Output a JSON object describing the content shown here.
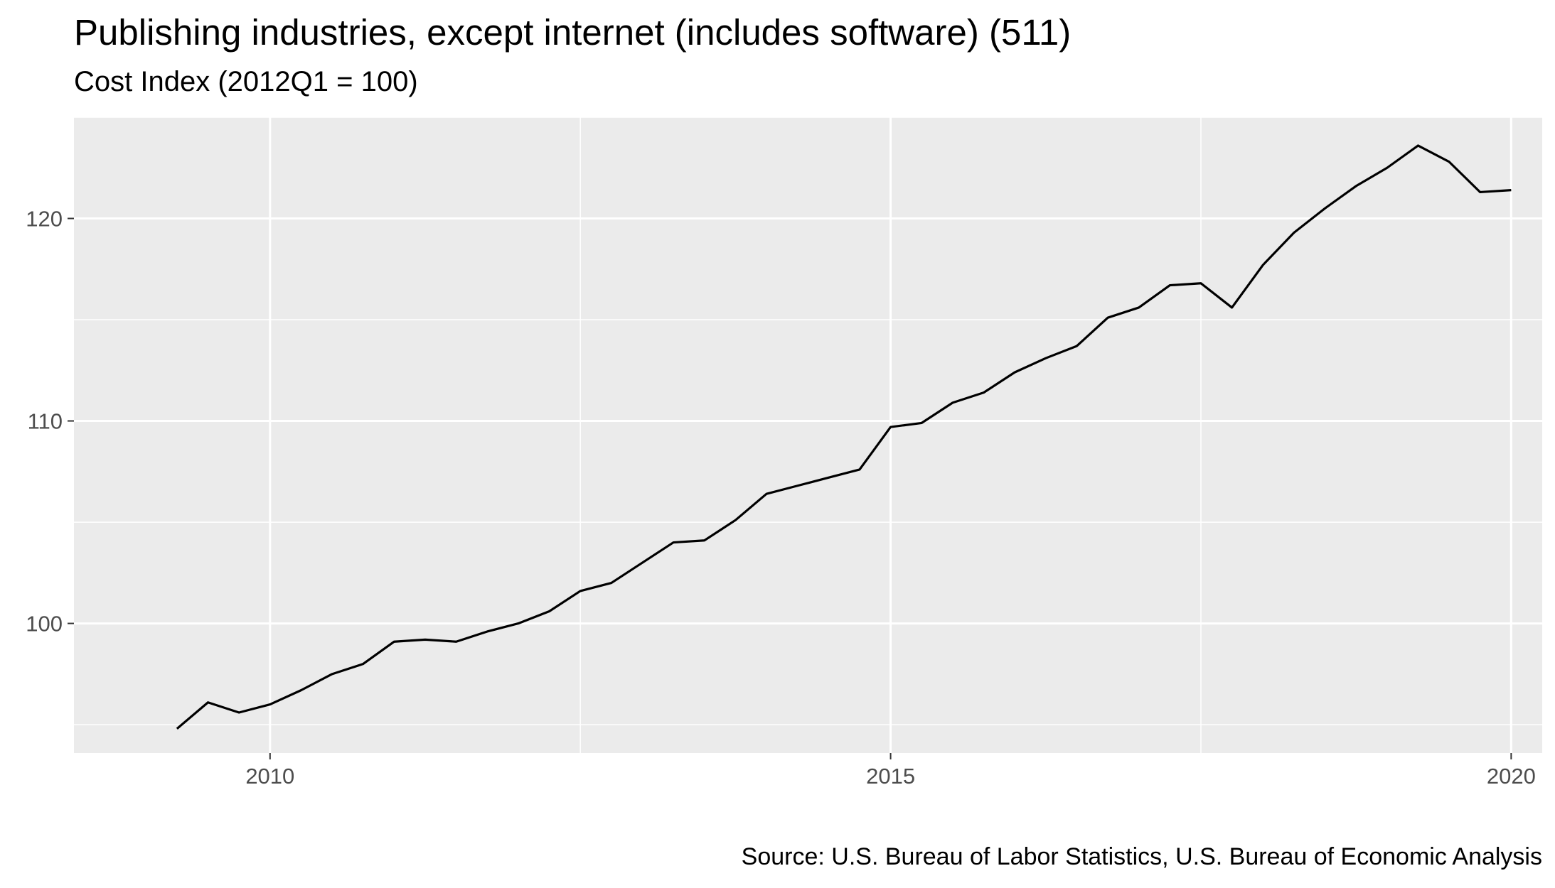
{
  "chart_data": {
    "type": "line",
    "title": "Publishing industries, except internet (includes software) (511)",
    "subtitle": "Cost Index (2012Q1 = 100)",
    "caption": "Source: U.S. Bureau of Labor Statistics, U.S. Bureau of Economic Analysis",
    "xlabel": "",
    "ylabel": "",
    "xlim": [
      2008.42,
      2020.25
    ],
    "ylim": [
      93.6,
      125.0
    ],
    "x_ticks": [
      2010,
      2015,
      2020
    ],
    "x_tick_labels": [
      "2010",
      "2015",
      "2020"
    ],
    "y_ticks": [
      100,
      110,
      120
    ],
    "y_tick_labels": [
      "100",
      "110",
      "120"
    ],
    "grid": true,
    "legend": "none",
    "line_color": "#000000",
    "panel_color": "#ebebeb",
    "series": [
      {
        "x": [
          2009.25,
          2009.5,
          2009.75,
          2010.0,
          2010.25,
          2010.5,
          2010.75,
          2011.0,
          2011.25,
          2011.5,
          2011.75,
          2012.0,
          2012.25,
          2012.5,
          2012.75,
          2013.0,
          2013.25,
          2013.5,
          2013.75,
          2014.0,
          2014.25,
          2014.5,
          2014.75,
          2015.0,
          2015.25,
          2015.5,
          2015.75,
          2016.0,
          2016.25,
          2016.5,
          2016.75,
          2017.0,
          2017.25,
          2017.5,
          2017.75,
          2018.0,
          2018.25,
          2018.5,
          2018.75,
          2019.0,
          2019.25,
          2019.5,
          2019.75,
          2020.0
        ],
        "values": [
          94.8,
          96.1,
          95.6,
          96.0,
          96.7,
          97.5,
          98.0,
          99.1,
          99.2,
          99.1,
          99.6,
          100.0,
          100.6,
          101.6,
          102.0,
          103.0,
          104.0,
          104.1,
          105.1,
          106.4,
          106.8,
          107.2,
          107.6,
          109.7,
          109.9,
          110.9,
          111.4,
          112.4,
          113.1,
          113.7,
          115.1,
          115.6,
          116.7,
          116.8,
          115.6,
          117.7,
          119.3,
          120.5,
          121.6,
          122.5,
          123.6,
          122.8,
          121.3,
          121.4
        ]
      }
    ]
  }
}
